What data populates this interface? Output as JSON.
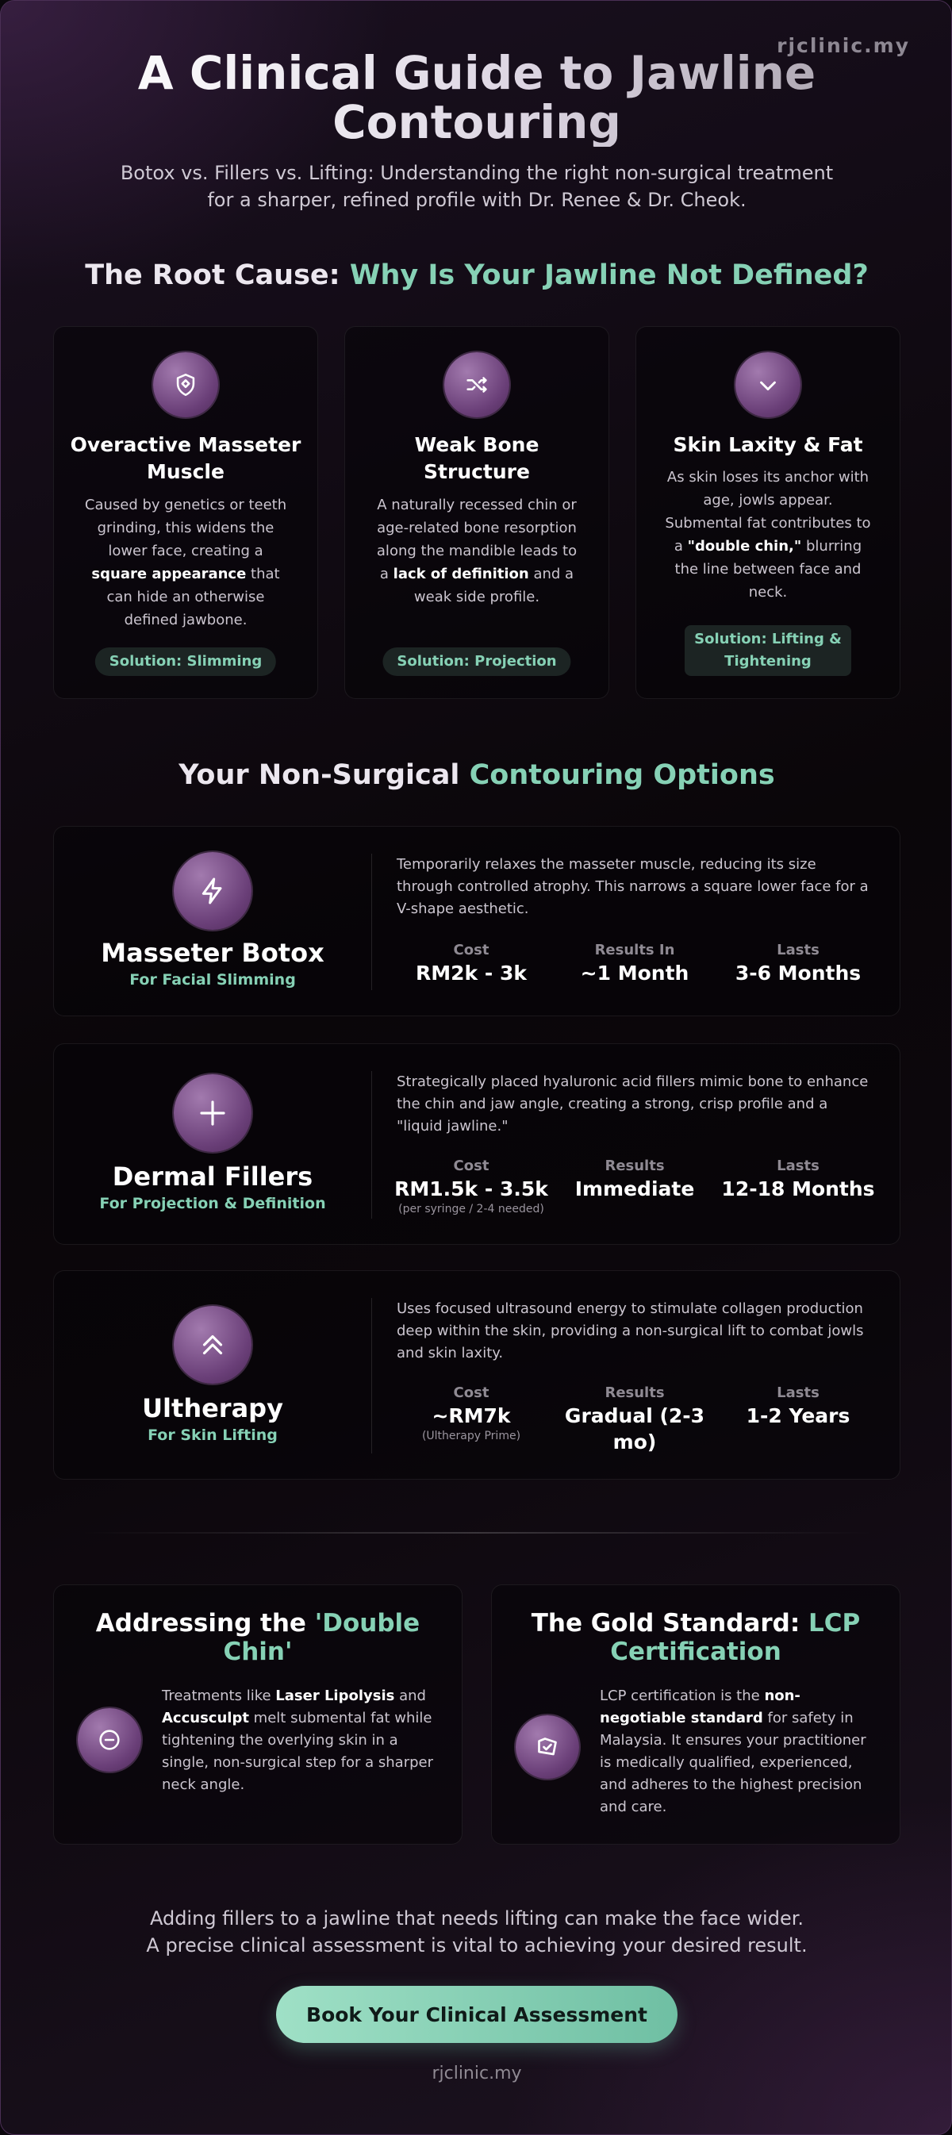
{
  "brand": {
    "top": "rjclinic.my",
    "bottom": "rjclinic.my"
  },
  "hero": {
    "title": "A Clinical Guide to Jawline Contouring",
    "subtitle": "Botox vs. Fillers vs. Lifting: Understanding the right non-surgical treatment for a sharper, refined profile with Dr. Renee & Dr. Cheok."
  },
  "root_cause": {
    "title_prefix": "The Root Cause: ",
    "title_accent": "Why Is Your Jawline Not Defined?",
    "cards": [
      {
        "icon": "shield-icon",
        "title": "Overactive Masseter Muscle",
        "desc_before": "Caused by genetics or teeth grinding, this widens the lower face, creating a ",
        "desc_bold": "square appearance",
        "desc_after": " that can hide an otherwise defined jawbone.",
        "solution": "Solution: Slimming"
      },
      {
        "icon": "shuffle-icon",
        "title": "Weak Bone Structure",
        "desc_before": "A naturally recessed chin or age-related bone resorption along the mandible leads to a ",
        "desc_bold": "lack of definition",
        "desc_after": " and a weak side profile.",
        "solution": "Solution: Projection"
      },
      {
        "icon": "chevron-down-icon",
        "title": "Skin Laxity & Fat",
        "desc_before": "As skin loses its anchor with age, jowls appear. Submental fat contributes to a ",
        "desc_bold": "\"double chin,\"",
        "desc_after": " blurring the line between face and neck.",
        "solution": "Solution: Lifting & Tightening"
      }
    ]
  },
  "options": {
    "title_prefix": "Your Non-Surgical ",
    "title_accent": "Contouring Options",
    "items": [
      {
        "icon": "lightning-icon",
        "name": "Masseter Botox",
        "tag": "For Facial Slimming",
        "desc": "Temporarily relaxes the masseter muscle, reducing its size through controlled atrophy. This narrows a square lower face for a V-shape aesthetic.",
        "stats": [
          {
            "label": "Cost",
            "value": "RM2k - 3k",
            "note": ""
          },
          {
            "label": "Results In",
            "value": "~1 Month",
            "note": ""
          },
          {
            "label": "Lasts",
            "value": "3-6 Months",
            "note": ""
          }
        ]
      },
      {
        "icon": "plus-icon",
        "name": "Dermal Fillers",
        "tag": "For Projection & Definition",
        "desc": "Strategically placed hyaluronic acid fillers mimic bone to enhance the chin and jaw angle, creating a strong, crisp profile and a \"liquid jawline.\"",
        "stats": [
          {
            "label": "Cost",
            "value": "RM1.5k - 3.5k",
            "note": "(per syringe / 2-4 needed)"
          },
          {
            "label": "Results",
            "value": "Immediate",
            "note": ""
          },
          {
            "label": "Lasts",
            "value": "12-18 Months",
            "note": ""
          }
        ]
      },
      {
        "icon": "double-chevron-up-icon",
        "name": "Ultherapy",
        "tag": "For Skin Lifting",
        "desc": "Uses focused ultrasound energy to stimulate collagen production deep within the skin, providing a non-surgical lift to combat jowls and skin laxity.",
        "stats": [
          {
            "label": "Cost",
            "value": "~RM7k",
            "note": "(Ultherapy Prime)"
          },
          {
            "label": "Results",
            "value": "Gradual (2-3 mo)",
            "note": ""
          },
          {
            "label": "Lasts",
            "value": "1-2 Years",
            "note": ""
          }
        ]
      }
    ]
  },
  "info": [
    {
      "icon": "minus-circle-icon",
      "title_prefix": "Addressing the ",
      "title_accent": "'Double Chin'",
      "p1": "Treatments like ",
      "b1": "Laser Lipolysis",
      "p2": " and ",
      "b2": "Accusculpt",
      "p3": " melt submental fat while tightening the overlying skin in a single, non-surgical step for a sharper neck angle."
    },
    {
      "icon": "certificate-icon",
      "title_prefix": "The Gold Standard: ",
      "title_accent": "LCP Certification",
      "p1": "LCP certification is the ",
      "b1": "non-negotiable standard",
      "p2": " for safety in Malaysia. It ensures your practitioner is medically qualified, experienced, and adheres to the highest precision and care.",
      "b2": "",
      "p3": ""
    }
  ],
  "closing": {
    "line1": "Adding fillers to a jawline that needs lifting can make the face wider.",
    "line2": "A precise clinical assessment is vital to achieving your desired result."
  },
  "cta": {
    "label": "Book Your Clinical Assessment"
  },
  "colors": {
    "accent": "#86d1b5",
    "icon_purple": "#6a3f78",
    "cta_start": "#9fe0c6",
    "cta_end": "#6fbfa3"
  }
}
